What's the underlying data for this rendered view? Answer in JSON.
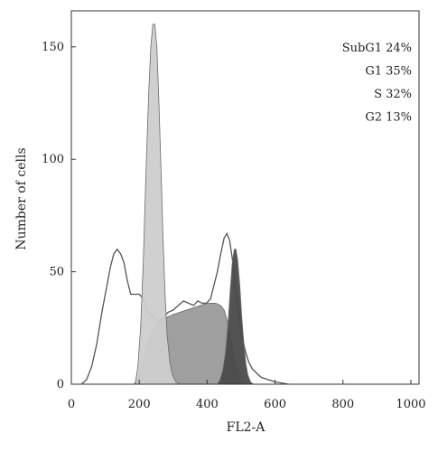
{
  "chart_data": {
    "type": "area",
    "xlabel": "FL2-A",
    "ylabel": "Number of cells",
    "xlim": [
      0,
      1024
    ],
    "ylim": [
      0,
      166
    ],
    "x_ticks": [
      0,
      200,
      400,
      600,
      800,
      1000
    ],
    "y_ticks": [
      0,
      50,
      100,
      150
    ],
    "grid": false,
    "legend_position": "top-right",
    "legend": [
      {
        "label": "SubG1",
        "value": "24%"
      },
      {
        "label": "G1",
        "value": "35%"
      },
      {
        "label": "S",
        "value": "32%"
      },
      {
        "label": "G2",
        "value": "13%"
      }
    ],
    "series": [
      {
        "name": "SubG1",
        "style": "outline",
        "color": "#555555",
        "points": [
          [
            30,
            0
          ],
          [
            45,
            2
          ],
          [
            60,
            8
          ],
          [
            75,
            18
          ],
          [
            90,
            32
          ],
          [
            105,
            44
          ],
          [
            115,
            52
          ],
          [
            125,
            58
          ],
          [
            135,
            60
          ],
          [
            145,
            58
          ],
          [
            155,
            54
          ],
          [
            165,
            46
          ],
          [
            175,
            40
          ],
          [
            185,
            40
          ],
          [
            200,
            40
          ],
          [
            212,
            38
          ],
          [
            225,
            32
          ],
          [
            240,
            30
          ],
          [
            258,
            28
          ],
          [
            272,
            30
          ],
          [
            285,
            32
          ],
          [
            300,
            33
          ],
          [
            315,
            35
          ],
          [
            330,
            37
          ],
          [
            345,
            36
          ],
          [
            360,
            35
          ],
          [
            372,
            37
          ],
          [
            385,
            36
          ],
          [
            398,
            36
          ],
          [
            410,
            38
          ],
          [
            420,
            44
          ],
          [
            430,
            50
          ],
          [
            440,
            58
          ],
          [
            450,
            65
          ],
          [
            458,
            67
          ],
          [
            466,
            64
          ],
          [
            474,
            56
          ],
          [
            482,
            45
          ],
          [
            492,
            32
          ],
          [
            502,
            22
          ],
          [
            512,
            15
          ],
          [
            522,
            10
          ],
          [
            532,
            7
          ],
          [
            545,
            5
          ],
          [
            560,
            3
          ],
          [
            580,
            2
          ],
          [
            600,
            1
          ],
          [
            640,
            0
          ]
        ]
      },
      {
        "name": "S",
        "style": "filled",
        "color": "#9a9a9a",
        "points": [
          [
            185,
            0
          ],
          [
            195,
            3
          ],
          [
            205,
            8
          ],
          [
            215,
            13
          ],
          [
            225,
            18
          ],
          [
            240,
            24
          ],
          [
            255,
            27
          ],
          [
            270,
            29
          ],
          [
            285,
            30
          ],
          [
            300,
            31
          ],
          [
            320,
            32
          ],
          [
            340,
            33
          ],
          [
            360,
            34
          ],
          [
            380,
            35
          ],
          [
            400,
            36
          ],
          [
            415,
            36
          ],
          [
            425,
            36
          ],
          [
            440,
            35
          ],
          [
            450,
            33
          ],
          [
            460,
            28
          ],
          [
            470,
            20
          ],
          [
            480,
            12
          ],
          [
            490,
            5
          ],
          [
            500,
            0
          ]
        ]
      },
      {
        "name": "G1",
        "style": "filled",
        "color": "#cdcdcd",
        "points": [
          [
            188,
            0
          ],
          [
            196,
            8
          ],
          [
            204,
            25
          ],
          [
            212,
            55
          ],
          [
            220,
            95
          ],
          [
            228,
            130
          ],
          [
            234,
            150
          ],
          [
            240,
            160
          ],
          [
            246,
            160
          ],
          [
            252,
            150
          ],
          [
            258,
            125
          ],
          [
            264,
            95
          ],
          [
            270,
            65
          ],
          [
            276,
            40
          ],
          [
            282,
            22
          ],
          [
            290,
            10
          ],
          [
            298,
            4
          ],
          [
            308,
            1
          ],
          [
            320,
            0
          ]
        ]
      },
      {
        "name": "G2",
        "style": "filled",
        "color": "#4a4a4a",
        "points": [
          [
            430,
            0
          ],
          [
            438,
            2
          ],
          [
            446,
            6
          ],
          [
            454,
            14
          ],
          [
            462,
            28
          ],
          [
            468,
            42
          ],
          [
            474,
            54
          ],
          [
            480,
            60
          ],
          [
            485,
            60
          ],
          [
            490,
            55
          ],
          [
            496,
            44
          ],
          [
            502,
            30
          ],
          [
            508,
            18
          ],
          [
            514,
            9
          ],
          [
            520,
            4
          ],
          [
            528,
            1
          ],
          [
            536,
            0
          ]
        ]
      }
    ]
  }
}
